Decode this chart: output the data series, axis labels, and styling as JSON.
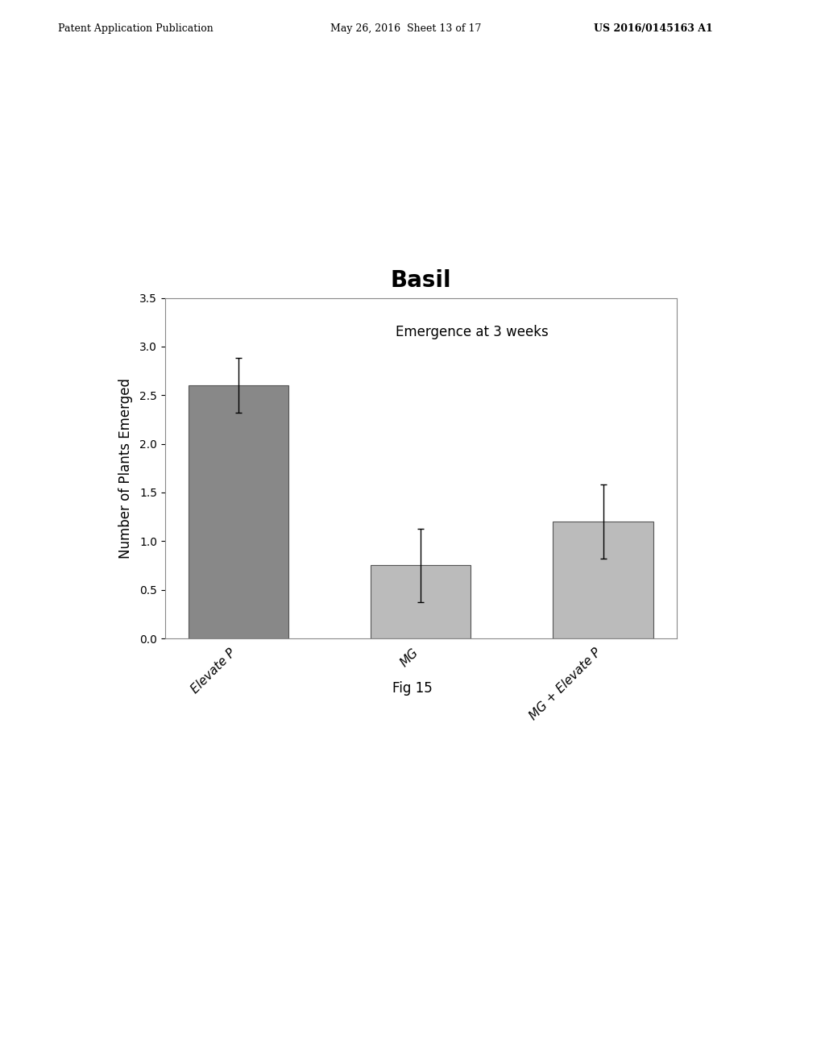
{
  "title": "Basil",
  "title_fontsize": 20,
  "title_fontweight": "bold",
  "annotation": "Emergence at 3 weeks",
  "annotation_fontsize": 12,
  "ylabel": "Number of Plants Emerged",
  "ylabel_fontsize": 12,
  "categories": [
    "Elevate P",
    "MG",
    "MG + Elevate P"
  ],
  "values": [
    2.6,
    0.75,
    1.2
  ],
  "errors": [
    0.28,
    0.38,
    0.38
  ],
  "bar_colors": [
    "#888888",
    "#bbbbbb",
    "#bbbbbb"
  ],
  "bar_edgecolor": "#555555",
  "ylim": [
    0,
    3.5
  ],
  "yticks": [
    0.0,
    0.5,
    1.0,
    1.5,
    2.0,
    2.5,
    3.0,
    3.5
  ],
  "figcaption": "Fig 15",
  "figcaption_fontsize": 12,
  "header_left": "Patent Application Publication",
  "header_center": "May 26, 2016  Sheet 13 of 17",
  "header_right": "US 2016/0145163 A1",
  "header_fontsize": 9,
  "background_color": "#ffffff",
  "bar_width": 0.55
}
